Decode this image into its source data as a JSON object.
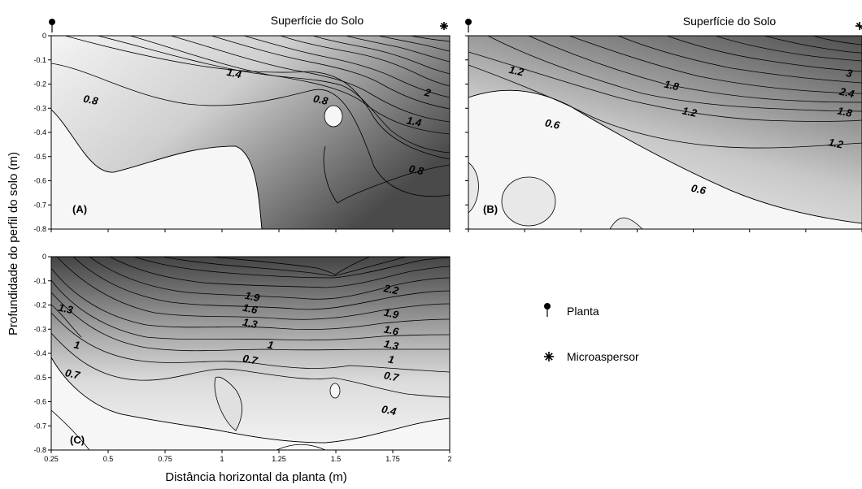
{
  "chart_data": [
    {
      "type": "contour",
      "panel_label": "(A)",
      "title": "Superfície do Solo",
      "xlim": [
        0.25,
        2
      ],
      "ylim": [
        -0.8,
        0
      ],
      "y_ticks": [
        "0",
        "-0.1",
        "-0.2",
        "-0.3",
        "-0.4",
        "-0.5",
        "-0.6",
        "-0.7",
        "-0.8"
      ],
      "contour_labels": [
        {
          "value": "1.4",
          "x": 1.05,
          "y": -0.17
        },
        {
          "value": "0.8",
          "x": 0.42,
          "y": -0.28
        },
        {
          "value": "0.8",
          "x": 1.43,
          "y": -0.28
        },
        {
          "value": "2",
          "x": 1.9,
          "y": -0.25
        },
        {
          "value": "1.4",
          "x": 1.84,
          "y": -0.37
        },
        {
          "value": "0.8",
          "x": 1.85,
          "y": -0.57
        }
      ]
    },
    {
      "type": "contour",
      "panel_label": "(B)",
      "title": "Superfície do Solo",
      "xlim": [
        0.25,
        2
      ],
      "ylim": [
        -0.8,
        0
      ],
      "contour_labels": [
        {
          "value": "1.2",
          "x": 0.46,
          "y": -0.16
        },
        {
          "value": "1.8",
          "x": 1.15,
          "y": -0.22
        },
        {
          "value": "3",
          "x": 1.94,
          "y": -0.17
        },
        {
          "value": "2.4",
          "x": 1.93,
          "y": -0.25
        },
        {
          "value": "1.2",
          "x": 1.23,
          "y": -0.33
        },
        {
          "value": "1.8",
          "x": 1.92,
          "y": -0.33
        },
        {
          "value": "0.6",
          "x": 0.62,
          "y": -0.38
        },
        {
          "value": "1.2",
          "x": 1.88,
          "y": -0.46
        },
        {
          "value": "0.6",
          "x": 1.27,
          "y": -0.65
        }
      ]
    },
    {
      "type": "contour",
      "panel_label": "(C)",
      "xlim": [
        0.25,
        2
      ],
      "ylim": [
        -0.8,
        0
      ],
      "x_ticks": [
        "0.25",
        "0.5",
        "0.75",
        "1",
        "1.25",
        "1.5",
        "1.75",
        "2"
      ],
      "y_ticks": [
        "0",
        "-0.1",
        "-0.2",
        "-0.3",
        "-0.4",
        "-0.5",
        "-0.6",
        "-0.7",
        "-0.8"
      ],
      "xlabel": "Distância horizontal da planta (m)",
      "ylabel": "Profundidade do perfil do solo (m)",
      "contour_labels": [
        {
          "value": "1.3",
          "x": 0.31,
          "y": -0.23
        },
        {
          "value": "1.9",
          "x": 1.13,
          "y": -0.18
        },
        {
          "value": "2.2",
          "x": 1.74,
          "y": -0.15
        },
        {
          "value": "1.6",
          "x": 1.12,
          "y": -0.23
        },
        {
          "value": "1.9",
          "x": 1.74,
          "y": -0.25
        },
        {
          "value": "1.3",
          "x": 1.12,
          "y": -0.29
        },
        {
          "value": "1.6",
          "x": 1.74,
          "y": -0.32
        },
        {
          "value": "1",
          "x": 0.36,
          "y": -0.38
        },
        {
          "value": "1",
          "x": 1.21,
          "y": -0.38
        },
        {
          "value": "1.3",
          "x": 1.74,
          "y": -0.38
        },
        {
          "value": "0.7",
          "x": 1.12,
          "y": -0.44
        },
        {
          "value": "1",
          "x": 1.74,
          "y": -0.44
        },
        {
          "value": "0.7",
          "x": 0.34,
          "y": -0.5
        },
        {
          "value": "0.7",
          "x": 1.74,
          "y": -0.51
        },
        {
          "value": "0.4",
          "x": 1.73,
          "y": -0.65
        }
      ]
    }
  ],
  "legend": {
    "planta": "Planta",
    "microaspersor": "Microaspersor"
  },
  "colors": {
    "shade_light": "#f2f2f2",
    "shade_mid": "#cccccc",
    "shade_dark": "#595959",
    "line": "#000000"
  }
}
